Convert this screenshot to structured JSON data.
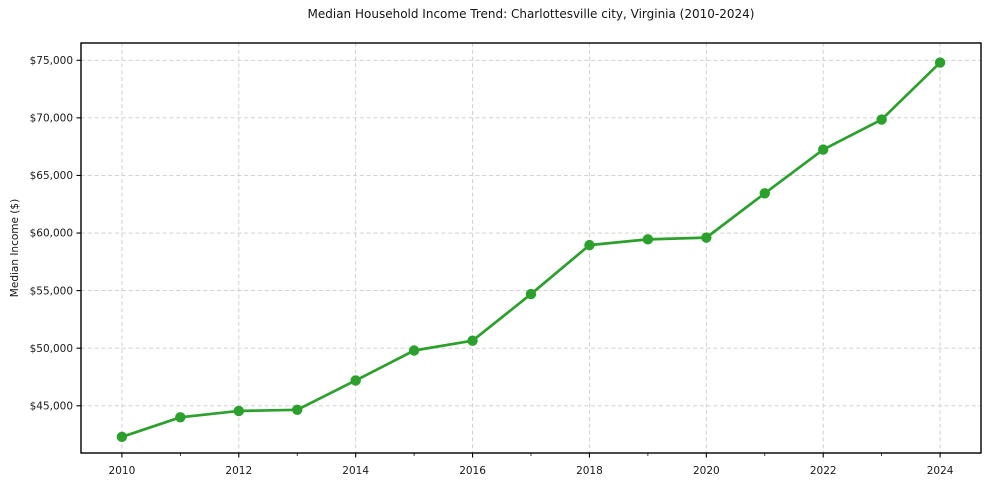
{
  "figure": {
    "background": "#ffffff"
  },
  "chart_data": {
    "type": "line",
    "title": "Median Household Income Trend: Charlottesville city, Virginia (2010-2024)",
    "xlabel": "",
    "ylabel": "Median Income ($)",
    "x": [
      2010,
      2011,
      2012,
      2013,
      2014,
      2015,
      2016,
      2017,
      2018,
      2019,
      2020,
      2021,
      2022,
      2023,
      2024
    ],
    "series": [
      {
        "name": "Median Household Income",
        "values": [
          42300,
          44000,
          44550,
          44650,
          47200,
          49800,
          50650,
          54700,
          58950,
          59450,
          59600,
          63450,
          67250,
          69850,
          74800
        ]
      }
    ],
    "xlim": [
      2009.3,
      2024.7
    ],
    "ylim": [
      40900,
      76500
    ],
    "yticks": [
      45000,
      50000,
      55000,
      60000,
      65000,
      70000,
      75000
    ],
    "ytick_labels": [
      "$45,000",
      "$50,000",
      "$55,000",
      "$60,000",
      "$65,000",
      "$70,000",
      "$75,000"
    ],
    "xticks": [
      2010,
      2012,
      2014,
      2016,
      2018,
      2020,
      2022,
      2024
    ],
    "xtick_labels": [
      "2010",
      "2012",
      "2014",
      "2016",
      "2018",
      "2020",
      "2022",
      "2024"
    ],
    "xticks_minor": [
      2011,
      2013,
      2015,
      2017,
      2019,
      2021,
      2023
    ],
    "grid": true,
    "grid_line_style": "dashed",
    "legend_position": "none",
    "marker": "circle",
    "colors": {
      "line": "#2ca02c",
      "marker": "#2ca02c",
      "grid": "#cccccc",
      "axis": "#000000",
      "text": "#1a1a1a",
      "background": "#ffffff"
    }
  }
}
